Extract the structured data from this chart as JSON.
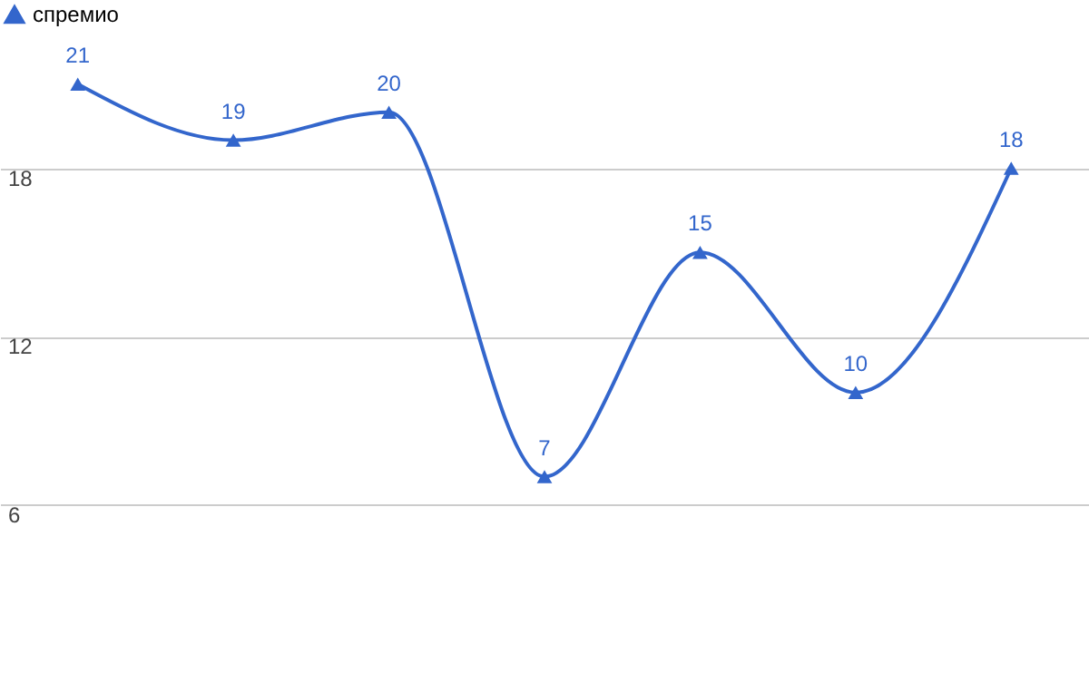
{
  "chart_data": {
    "type": "line",
    "categories": [
      null,
      null,
      null,
      null,
      null,
      null,
      null
    ],
    "series": [
      {
        "name": "спремио",
        "color": "#3366cc",
        "values": [
          21,
          19,
          20,
          7,
          15,
          10,
          18
        ]
      }
    ],
    "ylim": [
      0,
      24
    ],
    "yticks": [
      6,
      12,
      18
    ],
    "grid": "y",
    "legend": "top left",
    "marker": "triangle",
    "line_style": "solid",
    "data_labels": true,
    "tick_labels": "y"
  }
}
